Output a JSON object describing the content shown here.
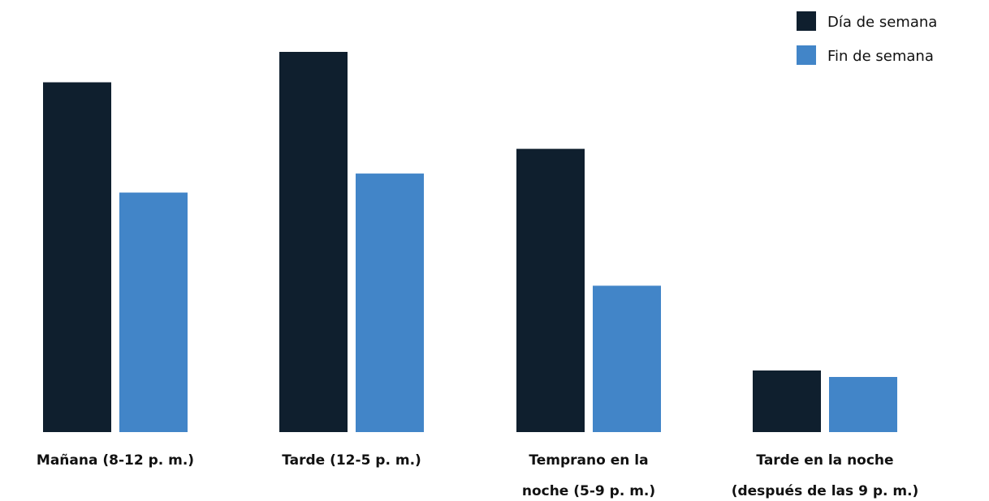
{
  "chart_data": {
    "type": "bar",
    "categories": [
      [
        "Mañana (8-12 p. m.)"
      ],
      [
        "Tarde (12-5 p. m.)"
      ],
      [
        "Temprano en la",
        "noche (5-9 p. m.)"
      ],
      [
        "Tarde en la noche",
        "(después de las 9 p. m.)"
      ]
    ],
    "series": [
      {
        "name": "Día de semana",
        "color": "#0f1f2e",
        "values": [
          92,
          100,
          74.5,
          16.2
        ]
      },
      {
        "name": "Fin de semana",
        "color": "#4285c8",
        "values": [
          63,
          68,
          38.5,
          14.5
        ]
      }
    ],
    "ylim": [
      0,
      100
    ],
    "grid": false,
    "legend": "top-right"
  }
}
